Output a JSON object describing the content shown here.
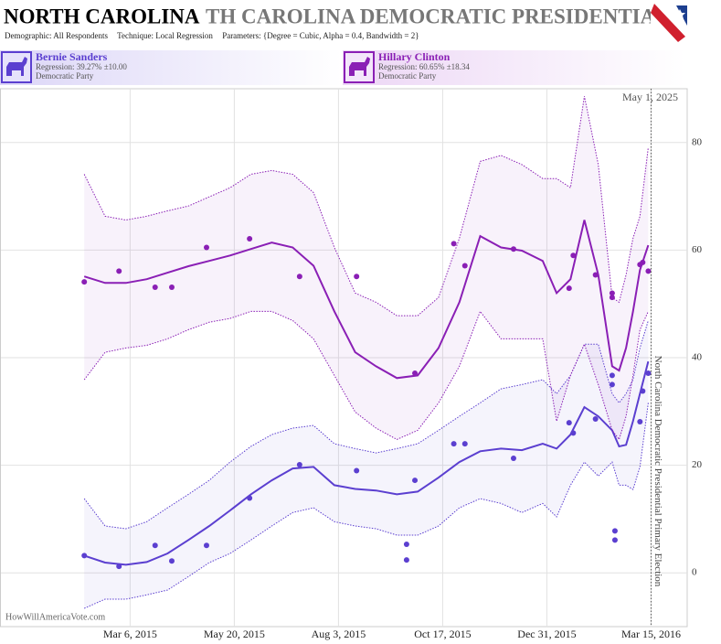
{
  "header": {
    "title": "NORTH CAROLINA",
    "marquee": "TH CAROLINA DEMOCRATIC PRESIDENTIAL I",
    "demographic_label": "Demographic:",
    "demographic": "All Respondents",
    "technique_label": "Technique:",
    "technique": "Local Regression",
    "parameters_label": "Parameters:",
    "parameters": "{Degree = Cubic, Alpha = 0.4, Bandwidth = 2}"
  },
  "chart_data": {
    "type": "regression",
    "xlim": [
      "2014-12-03",
      "2016-04-10"
    ],
    "ylim": [
      -10,
      90
    ],
    "yticks": [
      0,
      20,
      40,
      60,
      80
    ],
    "grid": true,
    "xticks": [
      {
        "value": "2015-03-06",
        "label": "Mar 6, 2015"
      },
      {
        "value": "2015-05-20",
        "label": "May 20, 2015"
      },
      {
        "value": "2015-08-03",
        "label": "Aug 3, 2015"
      },
      {
        "value": "2015-10-17",
        "label": "Oct 17, 2015"
      },
      {
        "value": "2015-12-31",
        "label": "Dec 31, 2015"
      },
      {
        "value": "2016-03-15",
        "label": "Mar 15, 2016"
      }
    ],
    "date_label": "May 1, 2025",
    "event_x": "2016-03-15",
    "event_label": "North Carolina Democratic Presidential Primary Election",
    "credit": "HowWillAmericaVote.com",
    "regression_x": [
      "2015-02-01",
      "2015-02-16",
      "2015-03-03",
      "2015-03-18",
      "2015-04-02",
      "2015-04-17",
      "2015-05-02",
      "2015-05-17",
      "2015-06-01",
      "2015-06-16",
      "2015-07-01",
      "2015-07-16",
      "2015-07-31",
      "2015-08-15",
      "2015-08-30",
      "2015-09-14",
      "2015-09-29",
      "2015-10-14",
      "2015-10-29",
      "2015-11-13",
      "2015-11-28",
      "2015-12-13",
      "2015-12-28",
      "2016-01-07",
      "2016-01-17",
      "2016-01-27",
      "2016-02-06",
      "2016-02-16",
      "2016-02-21",
      "2016-02-26",
      "2016-03-02",
      "2016-03-07",
      "2016-03-13"
    ],
    "series": [
      {
        "name": "Bernie Sanders",
        "summary": "Regression: 39.27% ±10.00",
        "party": "Democratic Party",
        "color": "#5b3fd0",
        "poll_x": [
          "2015-02-01",
          "2015-02-26",
          "2015-03-24",
          "2015-04-05",
          "2015-04-30",
          "2015-05-31",
          "2015-07-06",
          "2015-08-16",
          "2015-09-21",
          "2015-09-21",
          "2015-09-27",
          "2015-10-25",
          "2015-11-02",
          "2015-12-07",
          "2016-01-16",
          "2016-01-19",
          "2016-02-04",
          "2016-02-16",
          "2016-02-16",
          "2016-02-18",
          "2016-02-18",
          "2016-03-07",
          "2016-03-09",
          "2016-03-13"
        ],
        "poll_values": [
          3.2,
          1.2,
          5.1,
          2.2,
          5.1,
          13.9,
          20.1,
          19.0,
          5.3,
          2.4,
          17.2,
          24.0,
          24.0,
          21.3,
          27.9,
          26.0,
          28.6,
          36.7,
          35.0,
          7.8,
          6.1,
          28.1,
          33.8,
          37.1
        ],
        "regression": [
          3.2,
          1.9,
          1.5,
          2.0,
          3.6,
          6.1,
          8.7,
          11.6,
          14.6,
          17.2,
          19.4,
          19.7,
          16.3,
          15.6,
          15.3,
          14.6,
          15.1,
          17.7,
          20.6,
          22.6,
          23.1,
          22.8,
          24.0,
          23.1,
          25.7,
          30.8,
          29.1,
          26.5,
          23.5,
          23.8,
          28.2,
          33.3,
          39.3
        ],
        "upper": [
          13.8,
          8.7,
          8.2,
          9.5,
          12.1,
          14.6,
          17.2,
          20.6,
          23.5,
          25.7,
          26.9,
          27.4,
          24.0,
          23.1,
          22.3,
          23.1,
          24.0,
          26.5,
          29.1,
          31.6,
          34.2,
          35.0,
          35.9,
          33.3,
          36.7,
          42.5,
          42.5,
          33.3,
          31.6,
          33.3,
          35.9,
          41.8,
          46.9
        ],
        "lower": [
          -6.6,
          -4.9,
          -4.9,
          -4.1,
          -3.2,
          -0.7,
          1.9,
          3.6,
          6.1,
          8.7,
          11.2,
          12.1,
          9.5,
          8.7,
          8.2,
          7.0,
          7.0,
          8.7,
          12.1,
          13.8,
          12.9,
          11.2,
          12.9,
          10.4,
          16.3,
          20.6,
          18.0,
          20.6,
          16.3,
          16.3,
          15.5,
          19.7,
          31.6
        ]
      },
      {
        "name": "Hillary Clinton",
        "summary": "Regression: 60.65% ±18.34",
        "party": "Democratic Party",
        "color": "#8a1fb5",
        "poll_x": [
          "2015-02-01",
          "2015-02-26",
          "2015-03-24",
          "2015-04-05",
          "2015-04-30",
          "2015-05-31",
          "2015-07-06",
          "2015-08-16",
          "2015-09-27",
          "2015-10-25",
          "2015-11-02",
          "2015-12-07",
          "2016-01-16",
          "2016-01-19",
          "2016-02-04",
          "2016-02-16",
          "2016-02-16",
          "2016-03-07",
          "2016-03-09",
          "2016-03-13"
        ],
        "poll_values": [
          54.1,
          56.1,
          53.1,
          53.1,
          60.5,
          62.1,
          55.1,
          55.1,
          37.1,
          61.2,
          57.1,
          60.2,
          52.9,
          59.0,
          55.4,
          52.0,
          51.2,
          57.3,
          57.7,
          56.1
        ],
        "regression": [
          55.1,
          53.9,
          53.9,
          54.6,
          55.8,
          57.0,
          58.0,
          59.0,
          60.2,
          61.4,
          60.5,
          57.1,
          48.6,
          41.0,
          38.4,
          36.2,
          36.7,
          41.8,
          50.3,
          62.6,
          60.5,
          59.9,
          58.0,
          52.0,
          54.6,
          65.6,
          55.4,
          38.4,
          37.6,
          41.8,
          48.6,
          56.3,
          60.9
        ],
        "upper": [
          74.1,
          66.3,
          65.6,
          66.3,
          67.3,
          68.2,
          69.9,
          71.6,
          74.1,
          74.8,
          74.1,
          70.7,
          60.5,
          52.0,
          50.3,
          47.8,
          47.8,
          51.2,
          62.2,
          76.5,
          77.6,
          75.9,
          73.3,
          73.3,
          71.6,
          88.6,
          75.9,
          51.2,
          50.3,
          55.4,
          62.2,
          66.3,
          79.1
        ],
        "lower": [
          35.9,
          41.0,
          41.8,
          42.3,
          43.5,
          45.2,
          46.6,
          47.3,
          48.6,
          48.6,
          46.9,
          43.5,
          36.7,
          29.9,
          26.9,
          24.8,
          26.5,
          31.6,
          38.4,
          48.6,
          43.5,
          43.5,
          43.5,
          28.2,
          36.7,
          42.5,
          35.0,
          26.5,
          24.8,
          29.1,
          36.7,
          45.2,
          48.6
        ]
      }
    ]
  }
}
